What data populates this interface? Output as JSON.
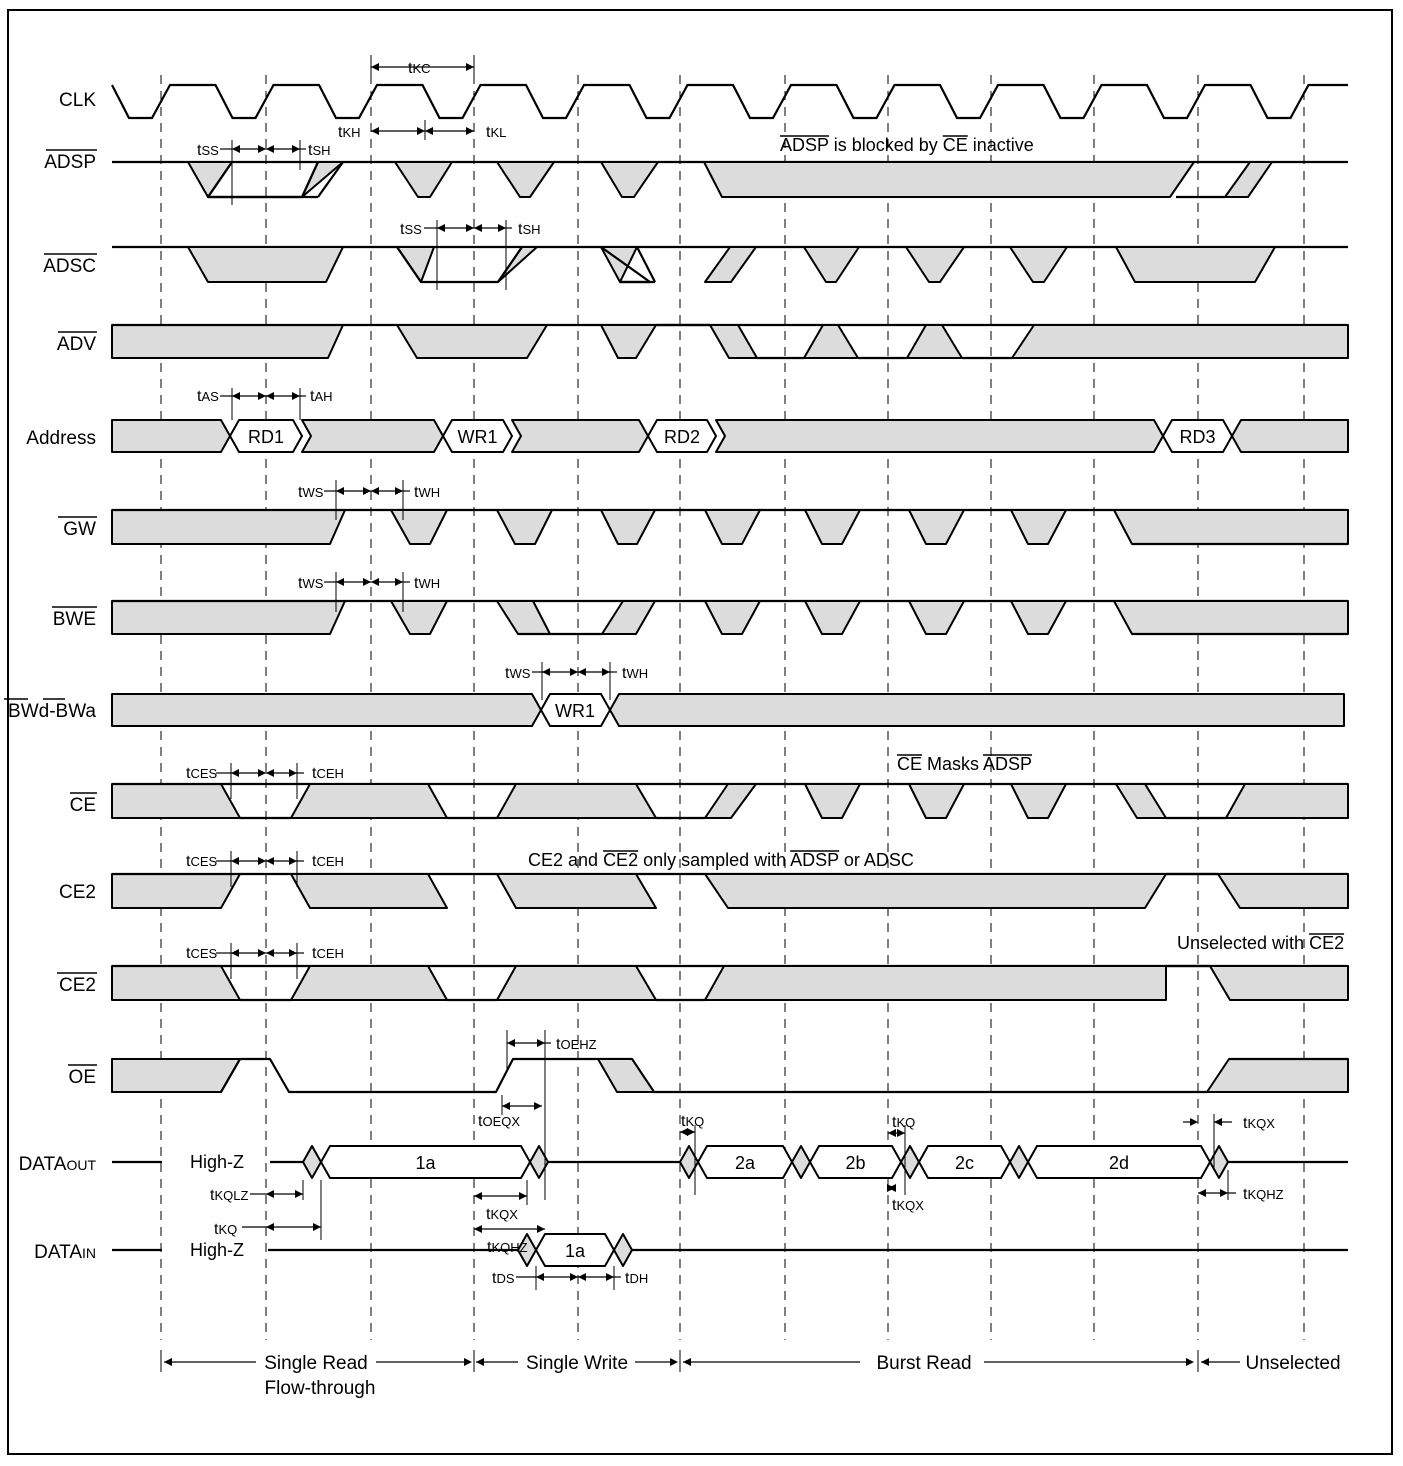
{
  "signals": [
    {
      "id": "clk",
      "label": "CLK",
      "overbar": false
    },
    {
      "id": "adsp",
      "label": "ADSP",
      "overbar": true
    },
    {
      "id": "adsc",
      "label": "ADSC",
      "overbar": true
    },
    {
      "id": "adv",
      "label": "ADV",
      "overbar": true
    },
    {
      "id": "address",
      "label": "Address",
      "overbar": false
    },
    {
      "id": "gw",
      "label": "GW",
      "overbar": true
    },
    {
      "id": "bwe",
      "label": "BWE",
      "overbar": true
    },
    {
      "id": "bw",
      "label": "BWd-BWa",
      "overbar": true
    },
    {
      "id": "ce",
      "label": "CE",
      "overbar": true
    },
    {
      "id": "ce2",
      "label": "CE2",
      "overbar": false
    },
    {
      "id": "ce2b",
      "label": "CE2",
      "overbar": true
    },
    {
      "id": "oe",
      "label": "OE",
      "overbar": true
    },
    {
      "id": "dataout",
      "label": "DATA",
      "sub": "OUT",
      "overbar": false
    },
    {
      "id": "datain",
      "label": "DATA",
      "sub": "IN",
      "overbar": false
    }
  ],
  "bus_values": {
    "address": [
      "RD1",
      "WR1",
      "RD2",
      "RD3"
    ],
    "bw": [
      "WR1"
    ],
    "dataout": [
      "1a",
      "2a",
      "2b",
      "2c",
      "2d"
    ],
    "datain": [
      "1a"
    ]
  },
  "high_z": "High-Z",
  "timing": {
    "tKC": "tKC",
    "tKH": "tKH",
    "tKL": "tKL",
    "tSS": "tSS",
    "tSH": "tSH",
    "tAS": "tAS",
    "tAH": "tAH",
    "tWS": "tWS",
    "tWH": "tWH",
    "tCES": "tCES",
    "tCEH": "tCEH",
    "tOEHZ": "tOEHZ",
    "tOEQX": "tOEQX",
    "tKQ": "tKQ",
    "tKQX": "tKQX",
    "tKQHZ": "tKQHZ",
    "tKQLZ": "tKQLZ",
    "tDS": "tDS",
    "tDH": "tDH"
  },
  "notes": {
    "adsp_blocked_a": "ADSP",
    "adsp_blocked_b": " is blocked by ",
    "adsp_blocked_c": "CE",
    "adsp_blocked_d": " inactive",
    "ce_masks_a": "CE",
    "ce_masks_b": " Masks ",
    "ce_masks_c": "ADSP",
    "ce2_sampled_a": "CE2 and ",
    "ce2_sampled_b": "CE2",
    "ce2_sampled_c": " only sampled with ",
    "ce2_sampled_d": "ADSP",
    "ce2_sampled_e": " or ADSC",
    "unselected_a": "Unselected with ",
    "unselected_b": "CE2"
  },
  "phases": {
    "single_read": "Single Read",
    "flow_through": "Flow-through",
    "single_write": "Single Write",
    "burst_read": "Burst Read",
    "unselected": "Unselected"
  },
  "colors": {
    "fill": "#dcdcdc",
    "line": "#000000"
  }
}
